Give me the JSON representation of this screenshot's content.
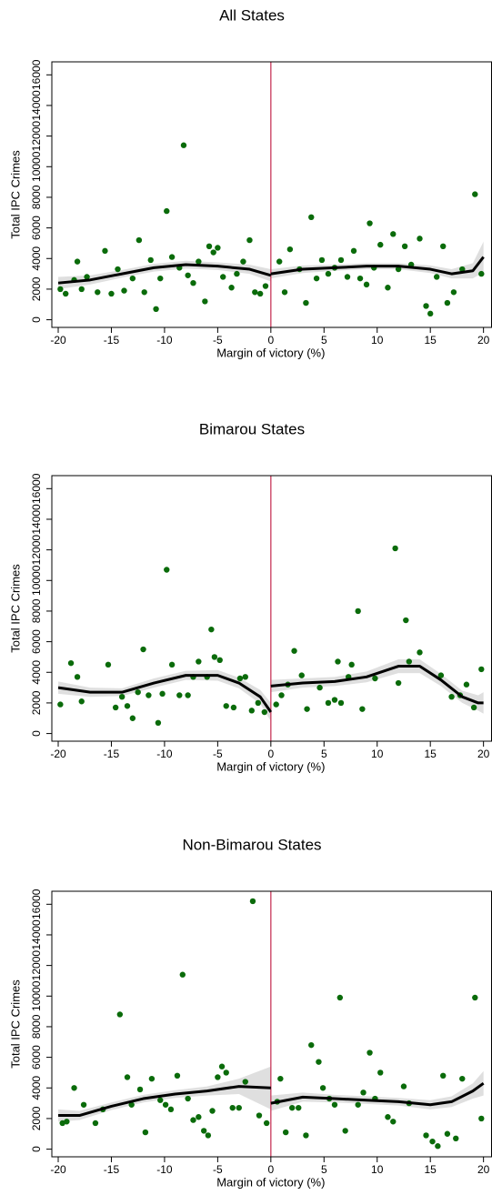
{
  "chart_data": [
    {
      "type": "scatter",
      "title": "All States",
      "x_label": "Margin of victory (%)",
      "y_label": "Total IPC Crimes",
      "xlim": [
        -20.6,
        20.8
      ],
      "ylim": [
        -500,
        16850
      ],
      "xticks": [
        -20,
        -15,
        -10,
        -5,
        0,
        5,
        10,
        15,
        20
      ],
      "yticks": [
        0,
        2000,
        4000,
        6000,
        8000,
        10000,
        12000,
        14000,
        16000
      ],
      "cutoff": 0,
      "cutoff_color": "#c8385a",
      "point_color": "#0a6b0a",
      "fit_color": "#000000",
      "band_color": "#d9d9d9",
      "points": {
        "x": [
          -19.8,
          -19.3,
          -18.5,
          -18.2,
          -17.8,
          -17.3,
          -16.3,
          -15.6,
          -15.0,
          -14.4,
          -13.8,
          -13.0,
          -12.4,
          -11.9,
          -11.3,
          -10.8,
          -10.4,
          -9.8,
          -9.3,
          -8.6,
          -8.2,
          -7.8,
          -7.3,
          -6.8,
          -6.2,
          -5.8,
          -5.4,
          -5.0,
          -4.5,
          -3.7,
          -3.2,
          -2.6,
          -2.0,
          -1.5,
          -1.0,
          -0.5,
          0.8,
          1.3,
          1.8,
          2.7,
          3.3,
          3.8,
          4.3,
          4.8,
          5.4,
          6.0,
          6.6,
          7.2,
          7.8,
          8.4,
          9.0,
          9.3,
          9.7,
          10.3,
          11.0,
          11.5,
          12.0,
          12.6,
          13.2,
          14.0,
          14.6,
          15.0,
          15.6,
          16.2,
          16.6,
          17.2,
          18.0,
          19.2,
          19.8
        ],
        "y": [
          2000,
          1700,
          2600,
          3800,
          2000,
          2800,
          1800,
          4500,
          1700,
          3300,
          1900,
          2700,
          5200,
          1800,
          3900,
          700,
          2700,
          7100,
          4100,
          3400,
          11400,
          2900,
          2400,
          3800,
          1200,
          4800,
          4400,
          4700,
          2800,
          2100,
          3000,
          3800,
          5200,
          1800,
          1700,
          2200,
          3800,
          1800,
          4600,
          3300,
          1100,
          6700,
          2700,
          3900,
          3000,
          3400,
          3900,
          2800,
          4500,
          2700,
          2300,
          6300,
          3400,
          4900,
          2100,
          5600,
          3300,
          4800,
          3600,
          5300,
          900,
          400,
          2800,
          4800,
          1100,
          1800,
          3300,
          8200,
          3000
        ]
      },
      "fit_left": {
        "x": [
          -20,
          -17,
          -14,
          -11,
          -8,
          -5,
          -2,
          0
        ],
        "y": [
          2400,
          2600,
          3000,
          3400,
          3600,
          3500,
          3300,
          2900
        ],
        "lower": [
          2000,
          2300,
          2750,
          3150,
          3350,
          3250,
          3000,
          2500
        ],
        "upper": [
          2800,
          2900,
          3250,
          3650,
          3850,
          3750,
          3600,
          3300
        ]
      },
      "fit_right": {
        "x": [
          0,
          3,
          6,
          9,
          12,
          15,
          17,
          19,
          20
        ],
        "y": [
          3000,
          3300,
          3400,
          3500,
          3500,
          3300,
          3000,
          3200,
          4100
        ],
        "lower": [
          2700,
          3050,
          3200,
          3300,
          3300,
          3050,
          2700,
          2700,
          3100
        ],
        "upper": [
          3300,
          3550,
          3600,
          3700,
          3700,
          3550,
          3300,
          3700,
          5100
        ]
      }
    },
    {
      "type": "scatter",
      "title": "Bimarou States",
      "x_label": "Margin of victory (%)",
      "y_label": "Total IPC Crimes",
      "xlim": [
        -20.6,
        20.8
      ],
      "ylim": [
        -500,
        16850
      ],
      "xticks": [
        -20,
        -15,
        -10,
        -5,
        0,
        5,
        10,
        15,
        20
      ],
      "yticks": [
        0,
        2000,
        4000,
        6000,
        8000,
        10000,
        12000,
        14000,
        16000
      ],
      "cutoff": 0,
      "cutoff_color": "#c8385a",
      "point_color": "#0a6b0a",
      "fit_color": "#000000",
      "band_color": "#d9d9d9",
      "points": {
        "x": [
          -19.8,
          -18.8,
          -18.2,
          -17.8,
          -15.3,
          -14.6,
          -14.0,
          -13.5,
          -13.0,
          -12.5,
          -12.0,
          -11.5,
          -10.6,
          -10.2,
          -9.8,
          -9.3,
          -8.6,
          -7.8,
          -7.3,
          -6.8,
          -6.0,
          -5.6,
          -5.3,
          -4.8,
          -4.2,
          -3.5,
          -2.9,
          -2.4,
          -1.8,
          -1.2,
          -0.6,
          0.5,
          1.0,
          1.6,
          2.2,
          2.9,
          3.4,
          4.6,
          5.4,
          6.0,
          6.3,
          6.6,
          7.3,
          7.6,
          8.2,
          8.6,
          9.8,
          11.7,
          12.0,
          12.7,
          13.0,
          14.0,
          16.0,
          17.0,
          17.8,
          18.4,
          19.1,
          19.8
        ],
        "y": [
          1900,
          4600,
          3700,
          2100,
          4500,
          1700,
          2400,
          1800,
          1000,
          2700,
          5500,
          2500,
          700,
          2600,
          10700,
          4500,
          2500,
          2500,
          3700,
          4700,
          3700,
          6800,
          5000,
          4800,
          1800,
          1700,
          3600,
          3700,
          1500,
          2000,
          1400,
          1900,
          2500,
          3200,
          5400,
          3800,
          1600,
          3000,
          2000,
          2200,
          4700,
          2000,
          3700,
          4500,
          8000,
          1600,
          3600,
          12100,
          3300,
          7400,
          4700,
          5300,
          3800,
          2400,
          2500,
          3200,
          1700,
          4200
        ]
      },
      "fit_left": {
        "x": [
          -20,
          -17,
          -14,
          -11,
          -8,
          -5,
          -3,
          -1,
          0
        ],
        "y": [
          3000,
          2700,
          2700,
          3300,
          3800,
          3800,
          3300,
          2400,
          1400
        ],
        "lower": [
          2600,
          2400,
          2450,
          3000,
          3500,
          3450,
          2950,
          1950,
          800
        ],
        "upper": [
          3400,
          3000,
          2950,
          3600,
          4100,
          4150,
          3650,
          2850,
          2000
        ]
      },
      "fit_right": {
        "x": [
          0,
          3,
          6,
          9,
          12,
          14,
          16,
          18,
          19.5,
          20
        ],
        "y": [
          3100,
          3300,
          3400,
          3700,
          4400,
          4400,
          3500,
          2400,
          2000,
          2000
        ],
        "lower": [
          2700,
          3000,
          3100,
          3350,
          3950,
          3950,
          3100,
          2000,
          1500,
          1300
        ],
        "upper": [
          3500,
          3600,
          3700,
          4050,
          4850,
          4850,
          3900,
          2800,
          2500,
          2700
        ]
      }
    },
    {
      "type": "scatter",
      "title": "Non-Bimarou States",
      "x_label": "Margin of victory (%)",
      "y_label": "Total IPC Crimes",
      "xlim": [
        -20.6,
        20.8
      ],
      "ylim": [
        -500,
        16850
      ],
      "xticks": [
        -20,
        -15,
        -10,
        -5,
        0,
        5,
        10,
        15,
        20
      ],
      "yticks": [
        0,
        2000,
        4000,
        6000,
        8000,
        10000,
        12000,
        14000,
        16000
      ],
      "cutoff": 0,
      "cutoff_color": "#c8385a",
      "point_color": "#0a6b0a",
      "fit_color": "#000000",
      "band_color": "#d9d9d9",
      "points": {
        "x": [
          -19.6,
          -19.2,
          -18.5,
          -17.6,
          -16.5,
          -15.8,
          -14.2,
          -13.5,
          -13.1,
          -12.3,
          -11.8,
          -11.2,
          -10.4,
          -9.9,
          -9.4,
          -8.8,
          -8.3,
          -7.8,
          -7.3,
          -6.8,
          -6.3,
          -5.9,
          -5.5,
          -5.0,
          -4.6,
          -4.2,
          -3.6,
          -3.0,
          -2.4,
          -1.7,
          -1.1,
          -0.4,
          0.6,
          0.9,
          1.4,
          2.0,
          2.6,
          3.3,
          3.8,
          4.5,
          4.9,
          5.5,
          6.0,
          6.5,
          7.0,
          8.2,
          8.7,
          9.3,
          9.8,
          10.3,
          11.0,
          11.5,
          12.5,
          13.0,
          14.6,
          15.2,
          15.7,
          16.2,
          16.6,
          17.4,
          18.0,
          19.2,
          19.8
        ],
        "y": [
          1700,
          1800,
          4000,
          2900,
          1700,
          2600,
          8800,
          4700,
          2900,
          3900,
          1100,
          4600,
          3200,
          2900,
          2600,
          4800,
          11400,
          3300,
          1900,
          2100,
          1200,
          900,
          2500,
          4700,
          5400,
          5000,
          2700,
          2700,
          4400,
          16200,
          2200,
          1700,
          3100,
          4600,
          1100,
          2700,
          2700,
          900,
          6800,
          5700,
          4000,
          3300,
          2900,
          9900,
          1200,
          2900,
          3700,
          6300,
          3300,
          5000,
          2100,
          1800,
          4100,
          3000,
          900,
          500,
          200,
          4800,
          1000,
          700,
          4600,
          9900,
          2000
        ]
      },
      "fit_left": {
        "x": [
          -20,
          -18,
          -15,
          -12,
          -9,
          -6,
          -3,
          0
        ],
        "y": [
          2200,
          2200,
          2800,
          3300,
          3600,
          3800,
          4100,
          4000
        ],
        "lower": [
          1800,
          1900,
          2550,
          3050,
          3350,
          3500,
          3600,
          2600
        ],
        "upper": [
          2600,
          2500,
          3050,
          3550,
          3850,
          4100,
          4600,
          5400
        ]
      },
      "fit_right": {
        "x": [
          0,
          3,
          6,
          9,
          12,
          15,
          17,
          19,
          20
        ],
        "y": [
          3000,
          3400,
          3300,
          3200,
          3100,
          2900,
          3100,
          3800,
          4300
        ],
        "lower": [
          2500,
          3100,
          3050,
          2950,
          2850,
          2600,
          2750,
          3300,
          3500
        ],
        "upper": [
          3500,
          3700,
          3550,
          3450,
          3350,
          3200,
          3450,
          4300,
          5100
        ]
      }
    }
  ]
}
